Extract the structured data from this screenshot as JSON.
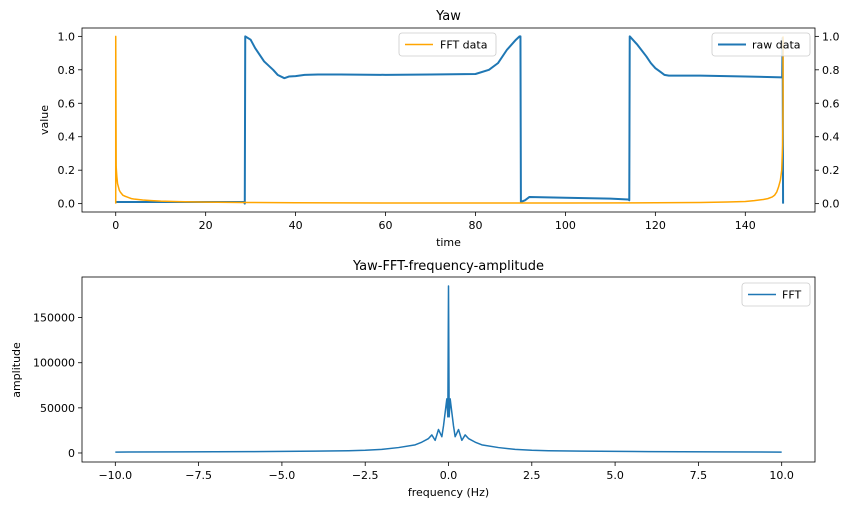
{
  "chart_data": [
    {
      "type": "line",
      "title": "Yaw",
      "xlabel": "time",
      "ylabel": "value",
      "xlim": [
        -7.5,
        155.5
      ],
      "ylim": [
        -0.05,
        1.05
      ],
      "x_ticks": [
        0,
        20,
        40,
        60,
        80,
        100,
        120,
        140
      ],
      "y_ticks": [
        0.0,
        0.2,
        0.4,
        0.6,
        0.8,
        1.0
      ],
      "y_ticks_right": [
        0.0,
        0.2,
        0.4,
        0.6,
        0.8,
        1.0
      ],
      "grid": false,
      "series": [
        {
          "name": "FFT data",
          "axis": "left",
          "color": "#FFA500",
          "legend_position": "upper-center",
          "x": [
            0,
            0,
            0.1,
            0.25,
            0.4,
            0.6,
            0.8,
            1.0,
            1.3,
            1.6,
            2.0,
            2.5,
            3,
            3.5,
            4,
            5,
            6,
            8,
            10,
            14,
            20,
            28,
            40,
            60,
            80,
            100,
            120,
            130,
            136,
            140,
            142,
            144,
            145,
            146,
            146.5,
            147,
            147.4,
            147.8,
            148.1,
            148.3,
            148.4,
            148.4
          ],
          "y": [
            0.0,
            1.0,
            0.22,
            0.16,
            0.12,
            0.1,
            0.08,
            0.07,
            0.06,
            0.05,
            0.045,
            0.04,
            0.035,
            0.03,
            0.028,
            0.025,
            0.022,
            0.018,
            0.015,
            0.012,
            0.009,
            0.007,
            0.005,
            0.004,
            0.004,
            0.004,
            0.005,
            0.007,
            0.01,
            0.013,
            0.018,
            0.025,
            0.03,
            0.04,
            0.05,
            0.07,
            0.1,
            0.14,
            0.2,
            0.35,
            0.6,
            1.0
          ]
        },
        {
          "name": "raw data",
          "axis": "right",
          "color": "#1f77b4",
          "legend_position": "upper-right",
          "x": [
            0,
            28.5,
            28.7,
            28.8,
            30,
            31,
            33,
            35,
            36,
            37.5,
            38.5,
            40,
            42,
            45,
            50,
            60,
            70,
            80,
            83,
            85,
            87,
            89,
            89.8,
            90,
            90.1,
            91,
            92,
            100,
            110,
            114,
            114.2,
            114.3,
            116,
            118,
            119,
            120,
            121,
            122,
            123,
            125,
            130,
            140,
            148.2,
            148.3,
            148.4
          ],
          "y": [
            0.01,
            0.01,
            0.0,
            1.0,
            0.98,
            0.93,
            0.85,
            0.8,
            0.77,
            0.75,
            0.76,
            0.762,
            0.77,
            0.772,
            0.772,
            0.77,
            0.772,
            0.775,
            0.8,
            0.84,
            0.92,
            0.98,
            1.0,
            1.0,
            0.01,
            0.02,
            0.04,
            0.035,
            0.03,
            0.025,
            0.02,
            1.0,
            0.95,
            0.88,
            0.84,
            0.81,
            0.79,
            0.77,
            0.765,
            0.765,
            0.765,
            0.76,
            0.755,
            0.99,
            0.0
          ]
        }
      ]
    },
    {
      "type": "line",
      "title": "Yaw-FFT-frequency-amplitude",
      "xlabel": "frequency (Hz)",
      "ylabel": "amplitude",
      "xlim": [
        -11.0,
        11.0
      ],
      "ylim": [
        -10000,
        195000
      ],
      "x_ticks": [
        -10.0,
        -7.5,
        -5.0,
        -2.5,
        0.0,
        2.5,
        5.0,
        7.5,
        10.0
      ],
      "x_tick_labels": [
        "−10.0",
        "−7.5",
        "−5.0",
        "−2.5",
        "0.0",
        "2.5",
        "5.0",
        "7.5",
        "10.0"
      ],
      "y_ticks": [
        0,
        50000,
        100000,
        150000
      ],
      "grid": false,
      "series": [
        {
          "name": "FFT",
          "color": "#1f77b4",
          "legend_position": "upper-right",
          "x": [
            -10.0,
            -8.0,
            -6.0,
            -4.0,
            -3.0,
            -2.5,
            -2.0,
            -1.5,
            -1.0,
            -0.8,
            -0.6,
            -0.5,
            -0.4,
            -0.3,
            -0.2,
            -0.15,
            -0.1,
            -0.05,
            -0.02,
            0.0,
            0.02,
            0.05,
            0.1,
            0.15,
            0.2,
            0.3,
            0.4,
            0.5,
            0.6,
            0.8,
            1.0,
            1.5,
            2.0,
            2.5,
            3.0,
            4.0,
            6.0,
            8.0,
            10.0
          ],
          "y": [
            1000,
            1200,
            1500,
            2000,
            2500,
            3000,
            4000,
            6000,
            9000,
            12000,
            16000,
            20000,
            14000,
            26000,
            18000,
            30000,
            45000,
            60000,
            40000,
            185000,
            40000,
            60000,
            45000,
            30000,
            18000,
            26000,
            14000,
            20000,
            16000,
            12000,
            9000,
            6000,
            4000,
            3000,
            2500,
            2000,
            1500,
            1200,
            1000
          ]
        }
      ]
    }
  ]
}
